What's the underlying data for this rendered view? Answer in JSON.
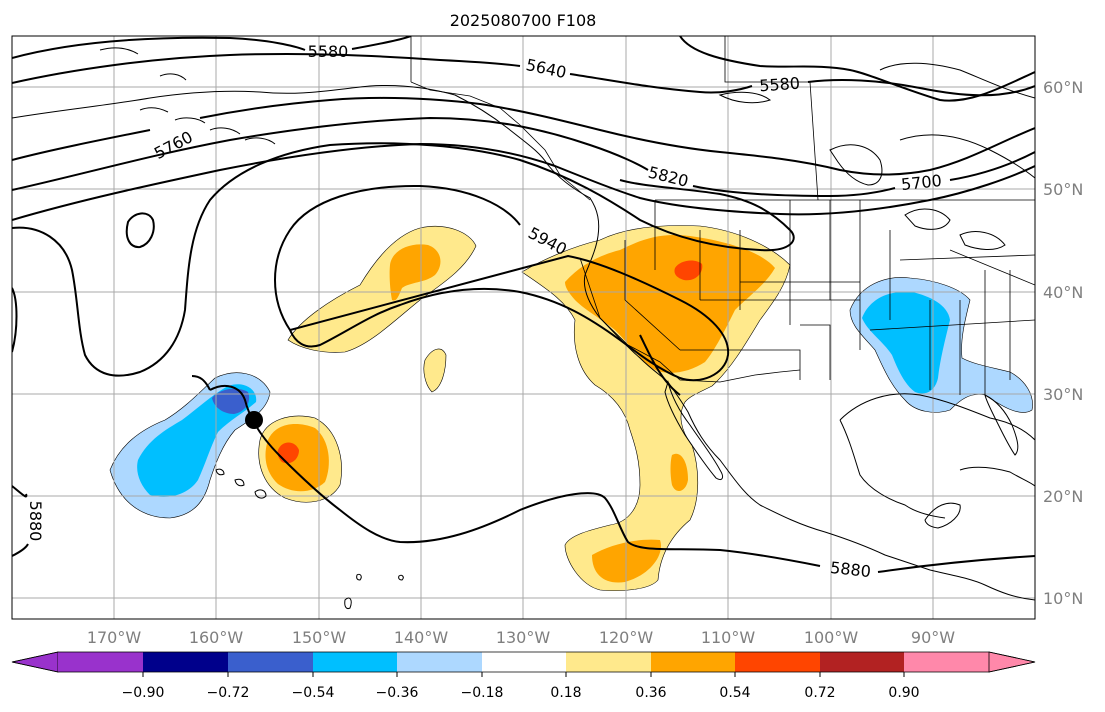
{
  "title": "2025080700 F108",
  "lon_labels": [
    "170°W",
    "160°W",
    "150°W",
    "140°W",
    "130°W",
    "120°W",
    "110°W",
    "100°W",
    "90°W"
  ],
  "lat_labels": [
    "60°N",
    "50°N",
    "40°N",
    "30°N",
    "20°N",
    "10°N"
  ],
  "contour_labels": [
    "5580",
    "5640",
    "5580",
    "5760",
    "5820",
    "5700",
    "5940",
    "5880",
    "5880"
  ],
  "colorbar": {
    "tick_labels": [
      "−0.90",
      "−0.72",
      "−0.54",
      "−0.36",
      "−0.18",
      "0.18",
      "0.36",
      "0.54",
      "0.72",
      "0.90"
    ],
    "colors": [
      "#9932cc",
      "#00008b",
      "#3a5fcd",
      "#00bfff",
      "#add8ff",
      "#ffffff",
      "#ffe98c",
      "#ffa500",
      "#ff4500",
      "#b22222",
      "#ff88aa"
    ]
  },
  "marker": "storm-center",
  "shading_colors": {
    "pos1": "#ffe98c",
    "pos2": "#ffa500",
    "pos3": "#ff4500",
    "neg1": "#add8ff",
    "neg2": "#00bfff",
    "neg3": "#3a5fcd"
  }
}
